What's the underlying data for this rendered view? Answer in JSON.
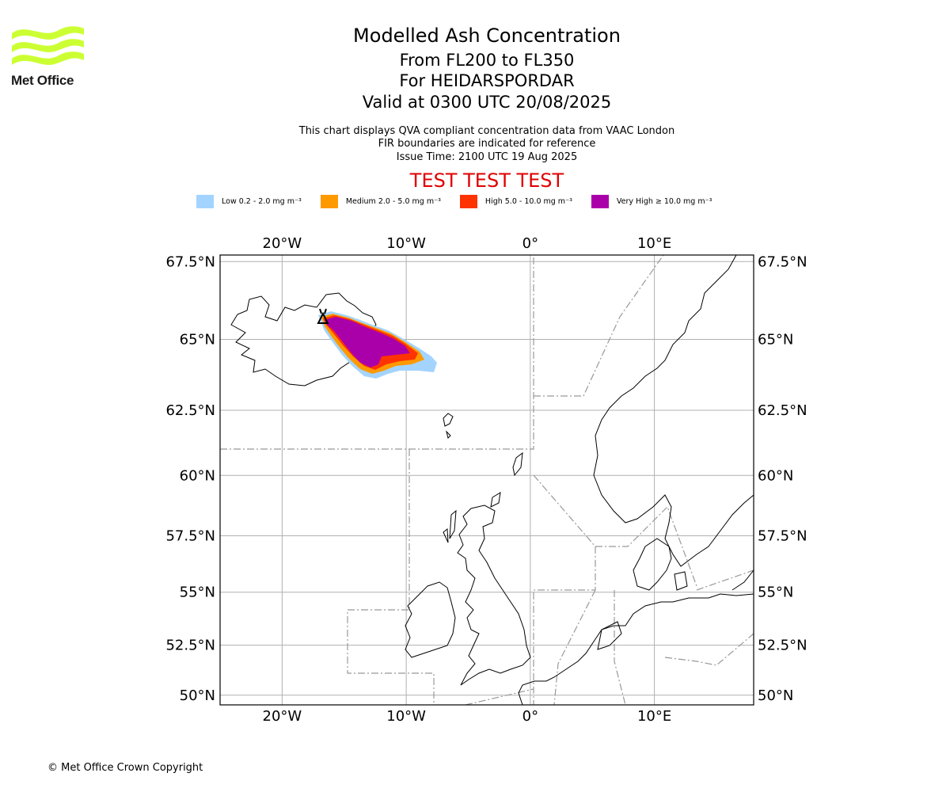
{
  "logo": {
    "text": "Met Office",
    "color": "#ccff33"
  },
  "title": {
    "line1": "Modelled Ash Concentration",
    "line2": "From FL200 to FL350",
    "line3": "For HEIDARSPORDAR",
    "line4": "Valid at 0300 UTC 20/08/2025"
  },
  "subtitle": {
    "line1": "This chart displays QVA compliant concentration data from VAAC London",
    "line2": "FIR boundaries are indicated for reference",
    "line3": "Issue Time: 2100 UTC 19 Aug 2025"
  },
  "test_banner": "TEST TEST TEST",
  "legend": [
    {
      "label": "Low 0.2 - 2.0 mg m⁻³",
      "color": "#a3d4ff"
    },
    {
      "label": "Medium 2.0 - 5.0 mg m⁻³",
      "color": "#ff9900"
    },
    {
      "label": "High 5.0 - 10.0 mg m⁻³",
      "color": "#ff3300"
    },
    {
      "label": "Very High ≥ 10.0 mg m⁻³",
      "color": "#aa00aa"
    }
  ],
  "map": {
    "lon_range": [
      -25,
      18
    ],
    "lat_range": [
      49.5,
      67.7
    ],
    "lon_ticks": [
      {
        "value": -20,
        "label": "20°W"
      },
      {
        "value": -10,
        "label": "10°W"
      },
      {
        "value": 0,
        "label": "0°"
      },
      {
        "value": 10,
        "label": "10°E"
      }
    ],
    "lat_ticks": [
      {
        "value": 67.5,
        "label": "67.5°N"
      },
      {
        "value": 65,
        "label": "65°N"
      },
      {
        "value": 62.5,
        "label": "62.5°N"
      },
      {
        "value": 60,
        "label": "60°N"
      },
      {
        "value": 57.5,
        "label": "57.5°N"
      },
      {
        "value": 55,
        "label": "55°N"
      },
      {
        "value": 52.5,
        "label": "52.5°N"
      },
      {
        "value": 50,
        "label": "50°N"
      }
    ],
    "grid": true,
    "ash_plume": {
      "source_lon": -16.5,
      "source_lat": 65.8,
      "levels": [
        "low",
        "medium",
        "high",
        "very_high"
      ]
    }
  },
  "copyright": "© Met Office Crown Copyright"
}
